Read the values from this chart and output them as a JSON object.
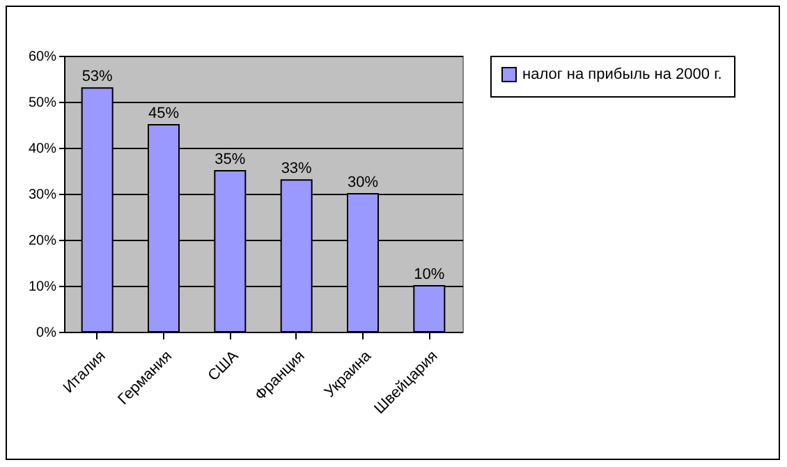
{
  "chart_data": {
    "type": "bar",
    "categories": [
      "Италия",
      "Германия",
      "США",
      "Франция",
      "Украина",
      "Швейцария"
    ],
    "series": [
      {
        "name": "налог на прибыль на 2000 г.",
        "color": "#9999ff",
        "values": [
          53,
          45,
          35,
          33,
          30,
          10
        ],
        "value_labels": [
          "53%",
          "45%",
          "35%",
          "33%",
          "30%",
          "10%"
        ]
      }
    ],
    "ylim": [
      0,
      60
    ],
    "yticks": [
      {
        "value": 0,
        "label": "0%"
      },
      {
        "value": 10,
        "label": "10%"
      },
      {
        "value": 20,
        "label": "20%"
      },
      {
        "value": 30,
        "label": "30%"
      },
      {
        "value": 40,
        "label": "40%"
      },
      {
        "value": 50,
        "label": "50%"
      },
      {
        "value": 60,
        "label": "60%"
      }
    ],
    "grid": "y",
    "legend": "right"
  }
}
